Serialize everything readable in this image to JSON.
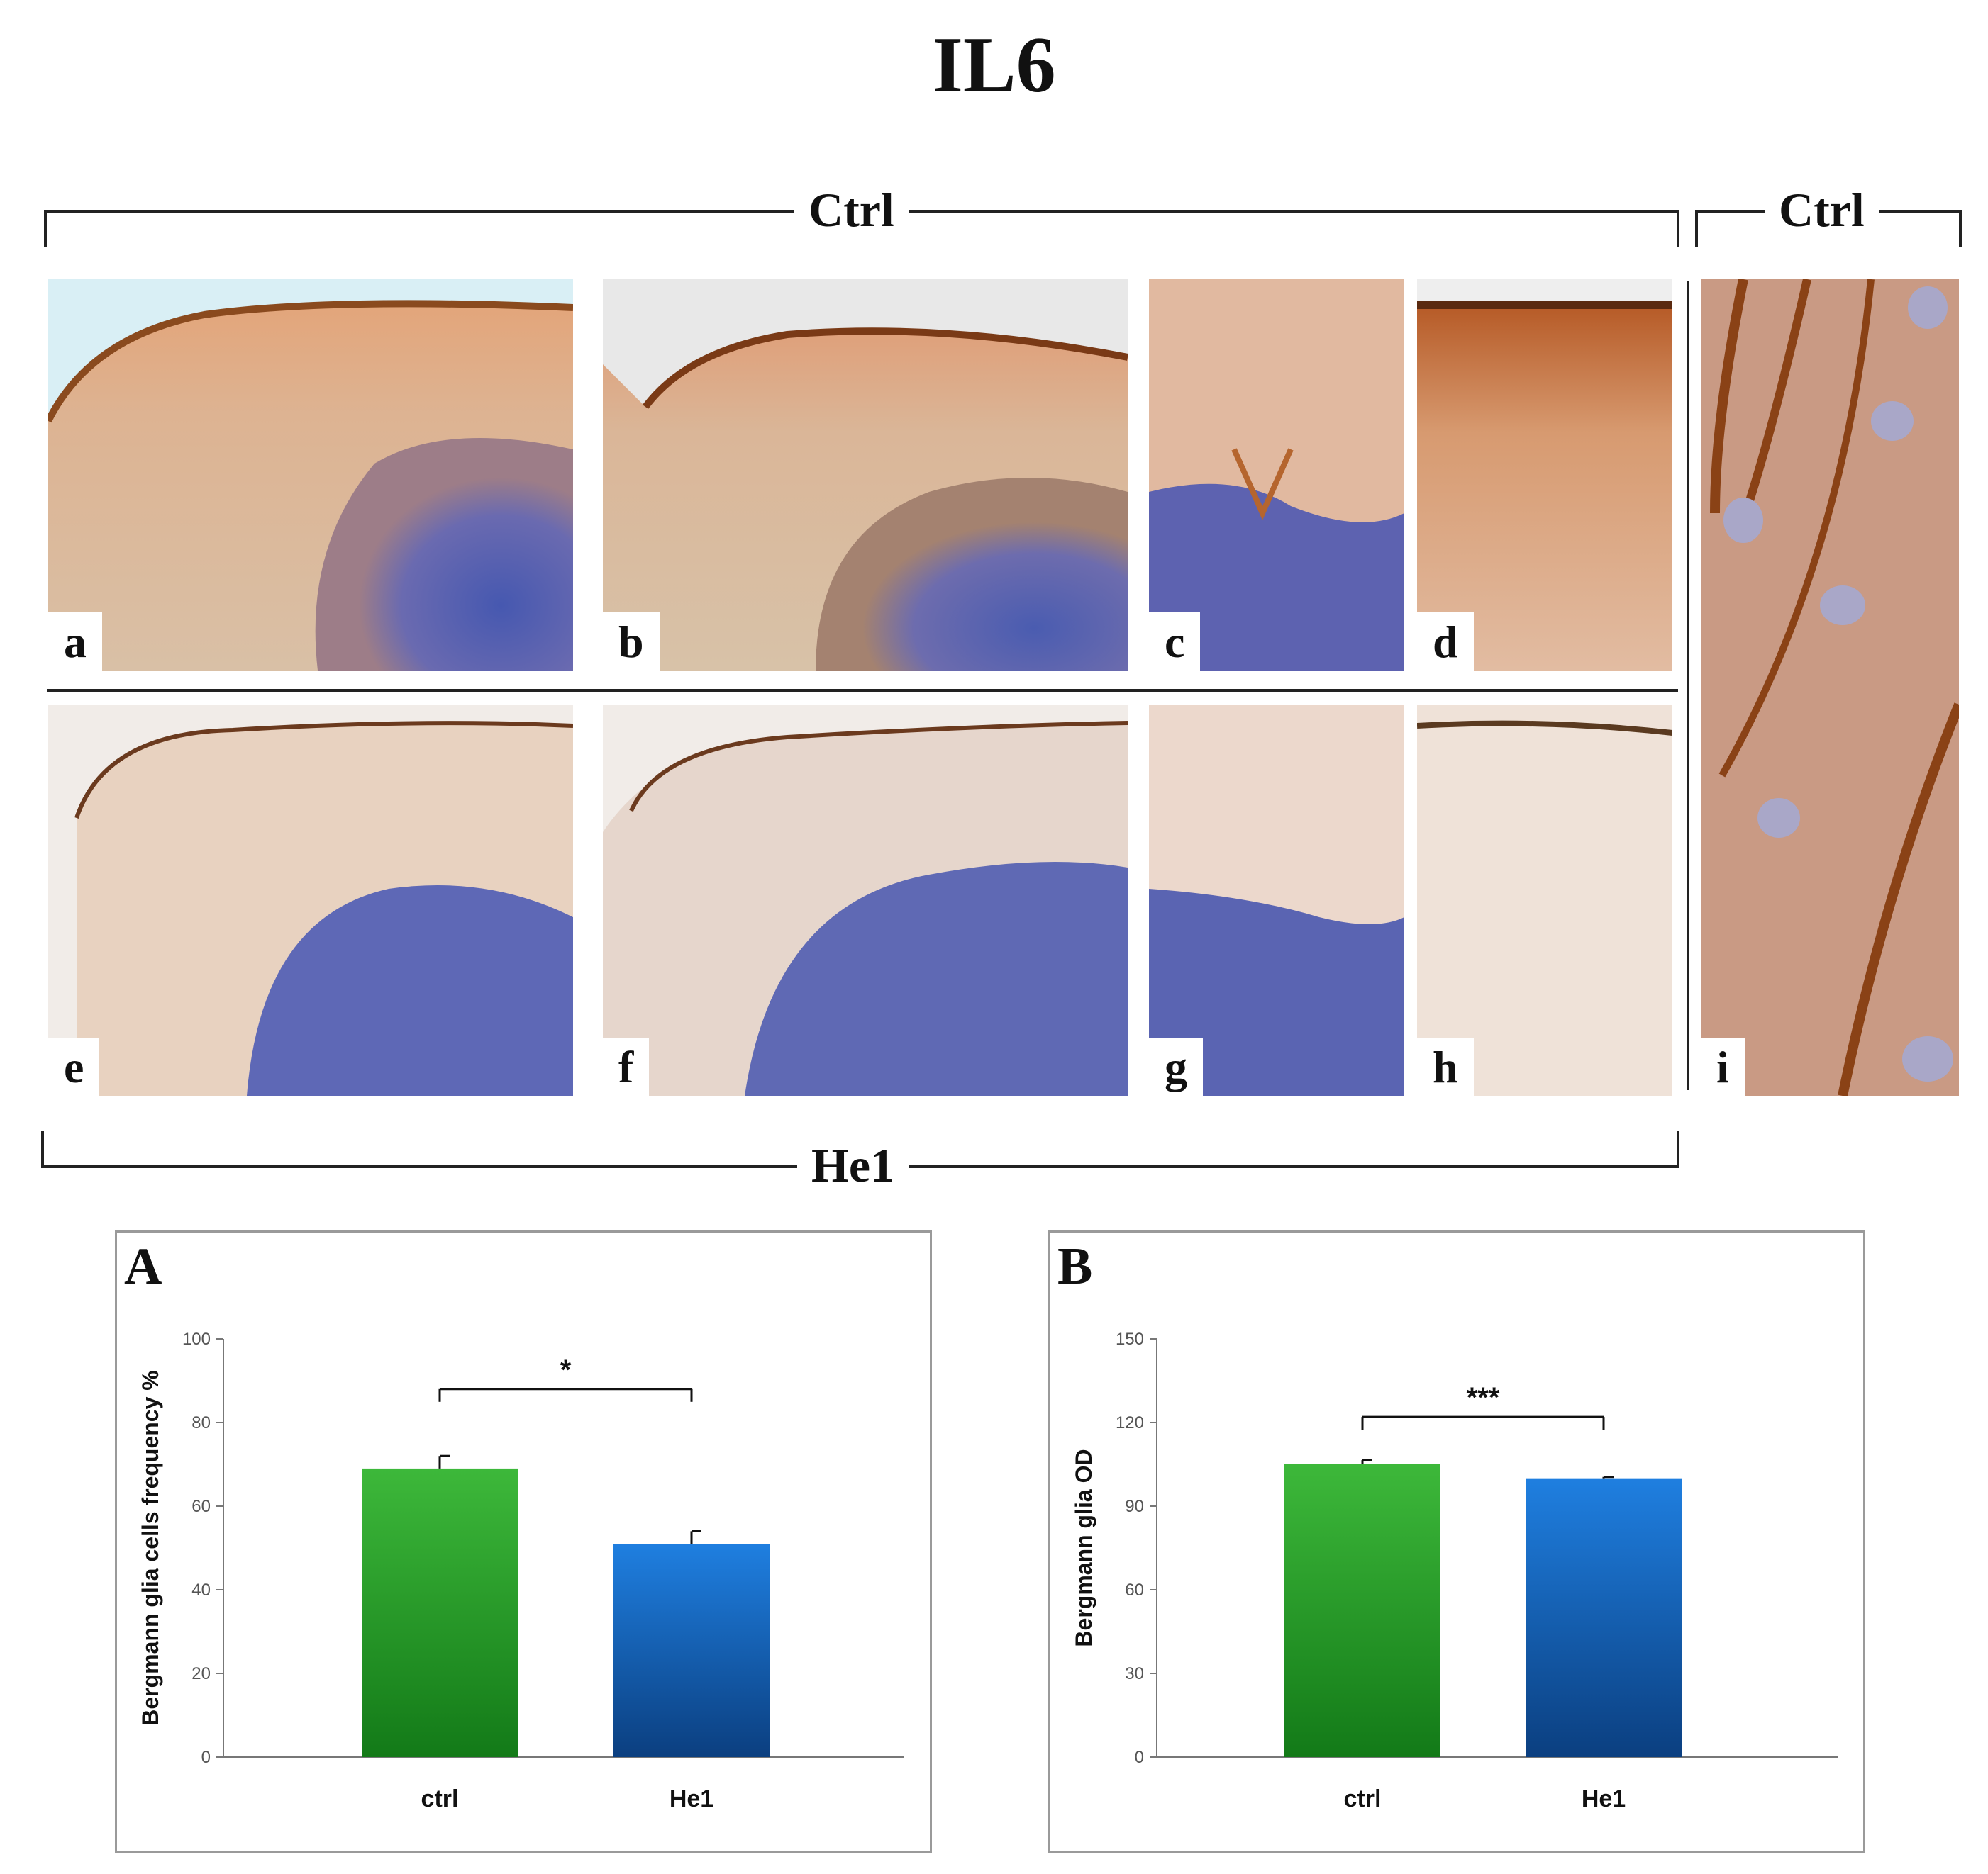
{
  "figure": {
    "title": "IL6",
    "groups": {
      "top_left": "Ctrl",
      "top_right": "Ctrl",
      "bottom": "He1"
    },
    "panels": [
      {
        "id": "a",
        "label": "a",
        "type": "micrograph",
        "group": "Ctrl"
      },
      {
        "id": "b",
        "label": "b",
        "type": "micrograph",
        "group": "Ctrl"
      },
      {
        "id": "c",
        "label": "c",
        "type": "micrograph",
        "group": "Ctrl"
      },
      {
        "id": "d",
        "label": "d",
        "type": "micrograph",
        "group": "Ctrl"
      },
      {
        "id": "e",
        "label": "e",
        "type": "micrograph",
        "group": "He1"
      },
      {
        "id": "f",
        "label": "f",
        "type": "micrograph",
        "group": "He1"
      },
      {
        "id": "g",
        "label": "g",
        "type": "micrograph",
        "group": "He1"
      },
      {
        "id": "h",
        "label": "h",
        "type": "micrograph",
        "group": "He1"
      },
      {
        "id": "i",
        "label": "i",
        "type": "micrograph",
        "group": "Ctrl"
      }
    ],
    "colors": {
      "ctrl_bar_top": "#3db83a",
      "ctrl_bar_bottom": "#137a18",
      "he1_bar_top": "#1f7fe0",
      "he1_bar_bottom": "#0b3f80",
      "stain_brown": "#b5652e",
      "stain_blue": "#4a5cb0"
    }
  },
  "chart_data": [
    {
      "panel": "A",
      "type": "bar",
      "categories": [
        "ctrl",
        "He1"
      ],
      "values": [
        69,
        51
      ],
      "errors": [
        3,
        3
      ],
      "ylabel": "Bergmann glia cells frequency %",
      "xlabel": "",
      "ylim": [
        0,
        100
      ],
      "yticks": [
        0,
        20,
        40,
        60,
        80,
        100
      ],
      "significance": "*",
      "grid": false,
      "legend": "none"
    },
    {
      "panel": "B",
      "type": "bar",
      "categories": [
        "ctrl",
        "He1"
      ],
      "values": [
        105,
        100
      ],
      "errors": [
        1.5,
        0.5
      ],
      "ylabel": "Bergmann glia OD",
      "xlabel": "",
      "ylim": [
        0,
        150
      ],
      "yticks": [
        0,
        30,
        60,
        90,
        120,
        150
      ],
      "significance": "***",
      "grid": false,
      "legend": "none"
    }
  ]
}
